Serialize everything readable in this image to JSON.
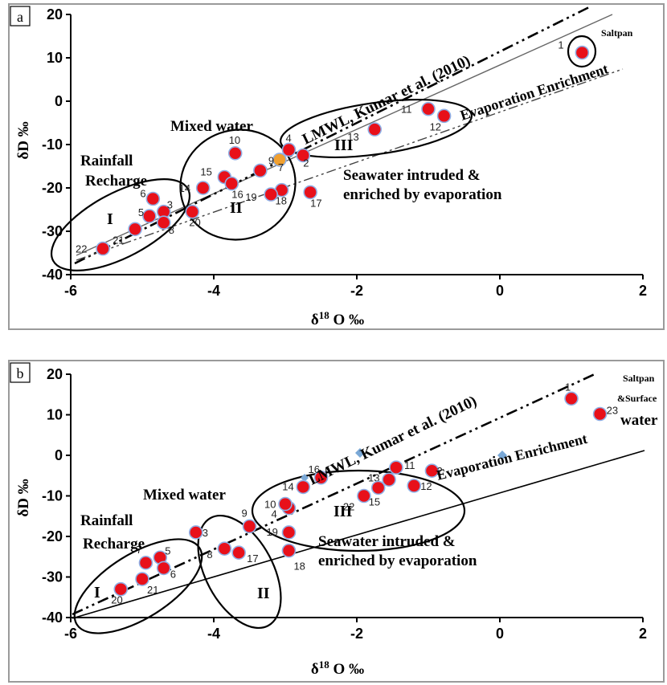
{
  "chart_data": [
    {
      "type": "scatter",
      "panel_label": "a",
      "xlabel": "δ18 O ‰",
      "ylabel": "δD ‰",
      "xlim": [
        -6,
        2
      ],
      "ylim": [
        -40,
        20
      ],
      "xticks": [
        "-6",
        "-4",
        "-2",
        "0",
        "2"
      ],
      "yticks": [
        "-40",
        "-30",
        "-20",
        "-10",
        "0",
        "10",
        "20"
      ],
      "grid": false,
      "points": [
        {
          "id": "1",
          "x": 1.15,
          "y": 11.2
        },
        {
          "id": "2",
          "x": -2.75,
          "y": -12.5
        },
        {
          "id": "3",
          "x": -4.7,
          "y": -25.5
        },
        {
          "id": "4",
          "x": -2.95,
          "y": -11.2
        },
        {
          "id": "5",
          "x": -4.9,
          "y": -26.5
        },
        {
          "id": "6",
          "x": -4.85,
          "y": -22.5
        },
        {
          "id": "7",
          "x": -3.08,
          "y": -13.5
        },
        {
          "id": "8",
          "x": -4.7,
          "y": -28
        },
        {
          "id": "9",
          "x": -3.35,
          "y": -16
        },
        {
          "id": "10",
          "x": -3.7,
          "y": -12
        },
        {
          "id": "11",
          "x": -1.0,
          "y": -1.8
        },
        {
          "id": "12",
          "x": -0.78,
          "y": -3.4
        },
        {
          "id": "13",
          "x": -1.75,
          "y": -6.5
        },
        {
          "id": "14",
          "x": -4.15,
          "y": -20
        },
        {
          "id": "15",
          "x": -3.85,
          "y": -17.5
        },
        {
          "id": "16",
          "x": -3.75,
          "y": -19
        },
        {
          "id": "17",
          "x": -2.65,
          "y": -21
        },
        {
          "id": "18",
          "x": -3.05,
          "y": -20.5
        },
        {
          "id": "19",
          "x": -3.2,
          "y": -21.5
        },
        {
          "id": "20",
          "x": -4.3,
          "y": -25.5
        },
        {
          "id": "21",
          "x": -5.1,
          "y": -29.5
        },
        {
          "id": "22",
          "x": -5.55,
          "y": -34
        }
      ],
      "annotations": {
        "saltpan": "Saltpan",
        "lmwl": "LMWL, Kumar et al. (2010)",
        "evap": "Evaporation  Enrichment",
        "mixed": "Mixed water",
        "rain1": "Rainfall",
        "rain2": "Recharge",
        "sea1": "Seawater intruded &",
        "sea2": "enriched by evaporation",
        "g1": "I",
        "g2": "II",
        "g3": "III"
      }
    },
    {
      "type": "scatter",
      "panel_label": "b",
      "xlabel": "δ18 O ‰",
      "ylabel": "δD ‰",
      "xlim": [
        -6,
        2
      ],
      "ylim": [
        -40,
        20
      ],
      "xticks": [
        "-6",
        "-4",
        "-2",
        "0",
        "2"
      ],
      "yticks": [
        "-40",
        "-30",
        "-20",
        "-10",
        "0",
        "10",
        "20"
      ],
      "grid": false,
      "points": [
        {
          "id": "1",
          "x": 1.0,
          "y": 14
        },
        {
          "id": "2",
          "x": -0.95,
          "y": -3.8
        },
        {
          "id": "3",
          "x": -4.25,
          "y": -19
        },
        {
          "id": "4",
          "x": -2.95,
          "y": -13
        },
        {
          "id": "5",
          "x": -4.75,
          "y": -25.2
        },
        {
          "id": "6",
          "x": -4.7,
          "y": -27.8
        },
        {
          "id": "7",
          "x": -4.95,
          "y": -26.5
        },
        {
          "id": "8",
          "x": -3.85,
          "y": -23
        },
        {
          "id": "9",
          "x": -3.5,
          "y": -17.5
        },
        {
          "id": "10",
          "x": -3.0,
          "y": -12
        },
        {
          "id": "11",
          "x": -1.45,
          "y": -3
        },
        {
          "id": "12",
          "x": -1.2,
          "y": -7.5
        },
        {
          "id": "13",
          "x": -1.55,
          "y": -6
        },
        {
          "id": "14",
          "x": -2.75,
          "y": -7.8
        },
        {
          "id": "15",
          "x": -1.7,
          "y": -8
        },
        {
          "id": "16",
          "x": -2.5,
          "y": -5.5
        },
        {
          "id": "17",
          "x": -3.65,
          "y": -24
        },
        {
          "id": "18",
          "x": -2.95,
          "y": -23.5
        },
        {
          "id": "19",
          "x": -2.95,
          "y": -19
        },
        {
          "id": "20",
          "x": -5.3,
          "y": -33
        },
        {
          "id": "21",
          "x": -5.0,
          "y": -30.5
        },
        {
          "id": "22",
          "x": -1.9,
          "y": -10
        },
        {
          "id": "23",
          "x": 1.4,
          "y": 10.2
        }
      ],
      "annotations": {
        "saltpan": "Saltpan",
        "surface": "&Surface",
        "lmwl": "LMWL, Kumar et al. (2010)",
        "evap": "Evaporation Enrichment",
        "evapwater": "water",
        "mixed": "Mixed water",
        "rain1": "Rainfall",
        "rain2": "Recharge",
        "sea1": "Seawater intruded &",
        "sea2": "enriched by evaporation",
        "g1": "I",
        "g2": "II",
        "g3": "III"
      }
    }
  ]
}
